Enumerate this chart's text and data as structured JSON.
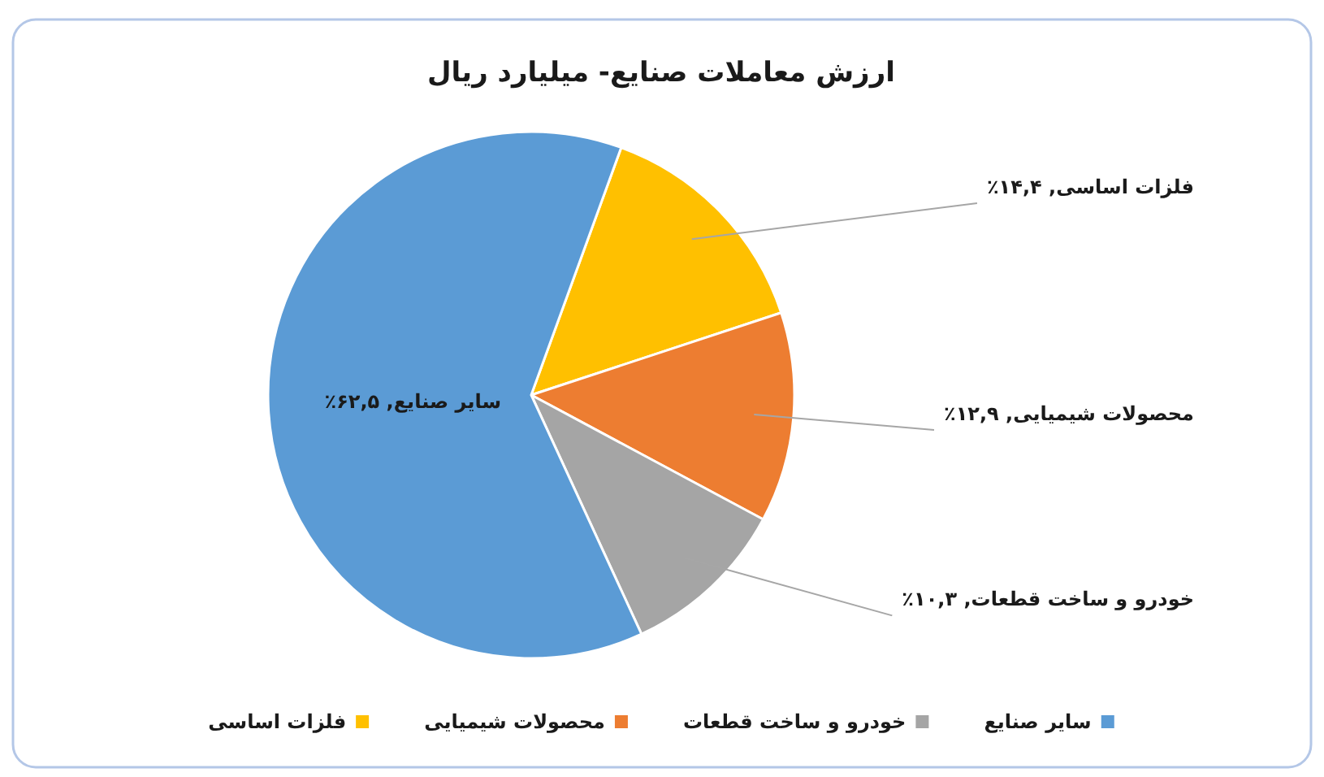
{
  "chart_data": {
    "type": "pie",
    "title": "ارزش معاملات صنایع- میلیارد ریال",
    "categories": [
      "فلزات اساسی",
      "محصولات شیمیایی",
      "خودرو و ساخت قطعات",
      "سایر صنایع"
    ],
    "values": [
      14.4,
      12.9,
      10.3,
      62.5
    ],
    "colors": [
      "#ffc000",
      "#ed7d31",
      "#a5a5a5",
      "#5b9bd5"
    ],
    "value_labels": [
      "فلزات اساسی, ۱۴,۴٪",
      "محصولات شیمیایی, ۱۲,۹٪",
      "خودرو و ساخت قطعات, ۱۰,۳٪",
      "سایر صنایع, ۶۲,۵٪"
    ],
    "legend": "bottom"
  }
}
